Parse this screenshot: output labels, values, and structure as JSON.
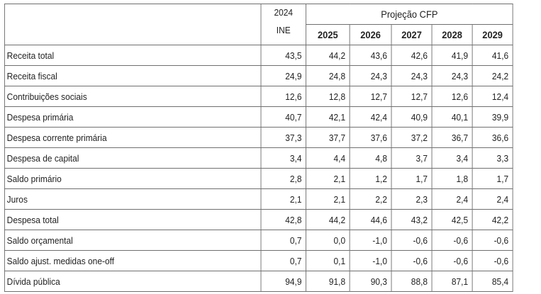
{
  "header": {
    "ine_year": "2024",
    "ine_source": "INE",
    "projection_title": "Projeção CFP",
    "years": [
      "2025",
      "2026",
      "2027",
      "2028",
      "2029"
    ]
  },
  "rows": [
    {
      "label": "Receita total",
      "v2024": "43,5",
      "vals": [
        "44,2",
        "43,6",
        "42,6",
        "41,9",
        "41,6"
      ]
    },
    {
      "label": "Receita fiscal",
      "v2024": "24,9",
      "vals": [
        "24,8",
        "24,3",
        "24,3",
        "24,3",
        "24,2"
      ]
    },
    {
      "label": "Contribuições sociais",
      "v2024": "12,6",
      "vals": [
        "12,8",
        "12,7",
        "12,7",
        "12,6",
        "12,4"
      ]
    },
    {
      "label": "Despesa primária",
      "v2024": "40,7",
      "vals": [
        "42,1",
        "42,4",
        "40,9",
        "40,1",
        "39,9"
      ]
    },
    {
      "label": "Despesa corrente primária",
      "v2024": "37,3",
      "vals": [
        "37,7",
        "37,6",
        "37,2",
        "36,7",
        "36,6"
      ]
    },
    {
      "label": "Despesa de capital",
      "v2024": "3,4",
      "vals": [
        "4,4",
        "4,8",
        "3,7",
        "3,4",
        "3,3"
      ]
    },
    {
      "label": "Saldo primário",
      "v2024": "2,8",
      "vals": [
        "2,1",
        "1,2",
        "1,7",
        "1,8",
        "1,7"
      ]
    },
    {
      "label": "Juros",
      "v2024": "2,1",
      "vals": [
        "2,1",
        "2,2",
        "2,3",
        "2,4",
        "2,4"
      ]
    },
    {
      "label": "Despesa total",
      "v2024": "42,8",
      "vals": [
        "44,2",
        "44,6",
        "43,2",
        "42,5",
        "42,2"
      ]
    },
    {
      "label": "Saldo orçamental",
      "v2024": "0,7",
      "vals": [
        "0,0",
        "-1,0",
        "-0,6",
        "-0,6",
        "-0,6"
      ]
    },
    {
      "label": "Saldo ajust. medidas one-off",
      "v2024": "0,7",
      "vals": [
        "0,1",
        "-1,0",
        "-0,6",
        "-0,6",
        "-0,6"
      ]
    },
    {
      "label": "Dívida pública",
      "v2024": "94,9",
      "vals": [
        "91,8",
        "90,3",
        "88,8",
        "87,1",
        "85,4"
      ]
    }
  ]
}
